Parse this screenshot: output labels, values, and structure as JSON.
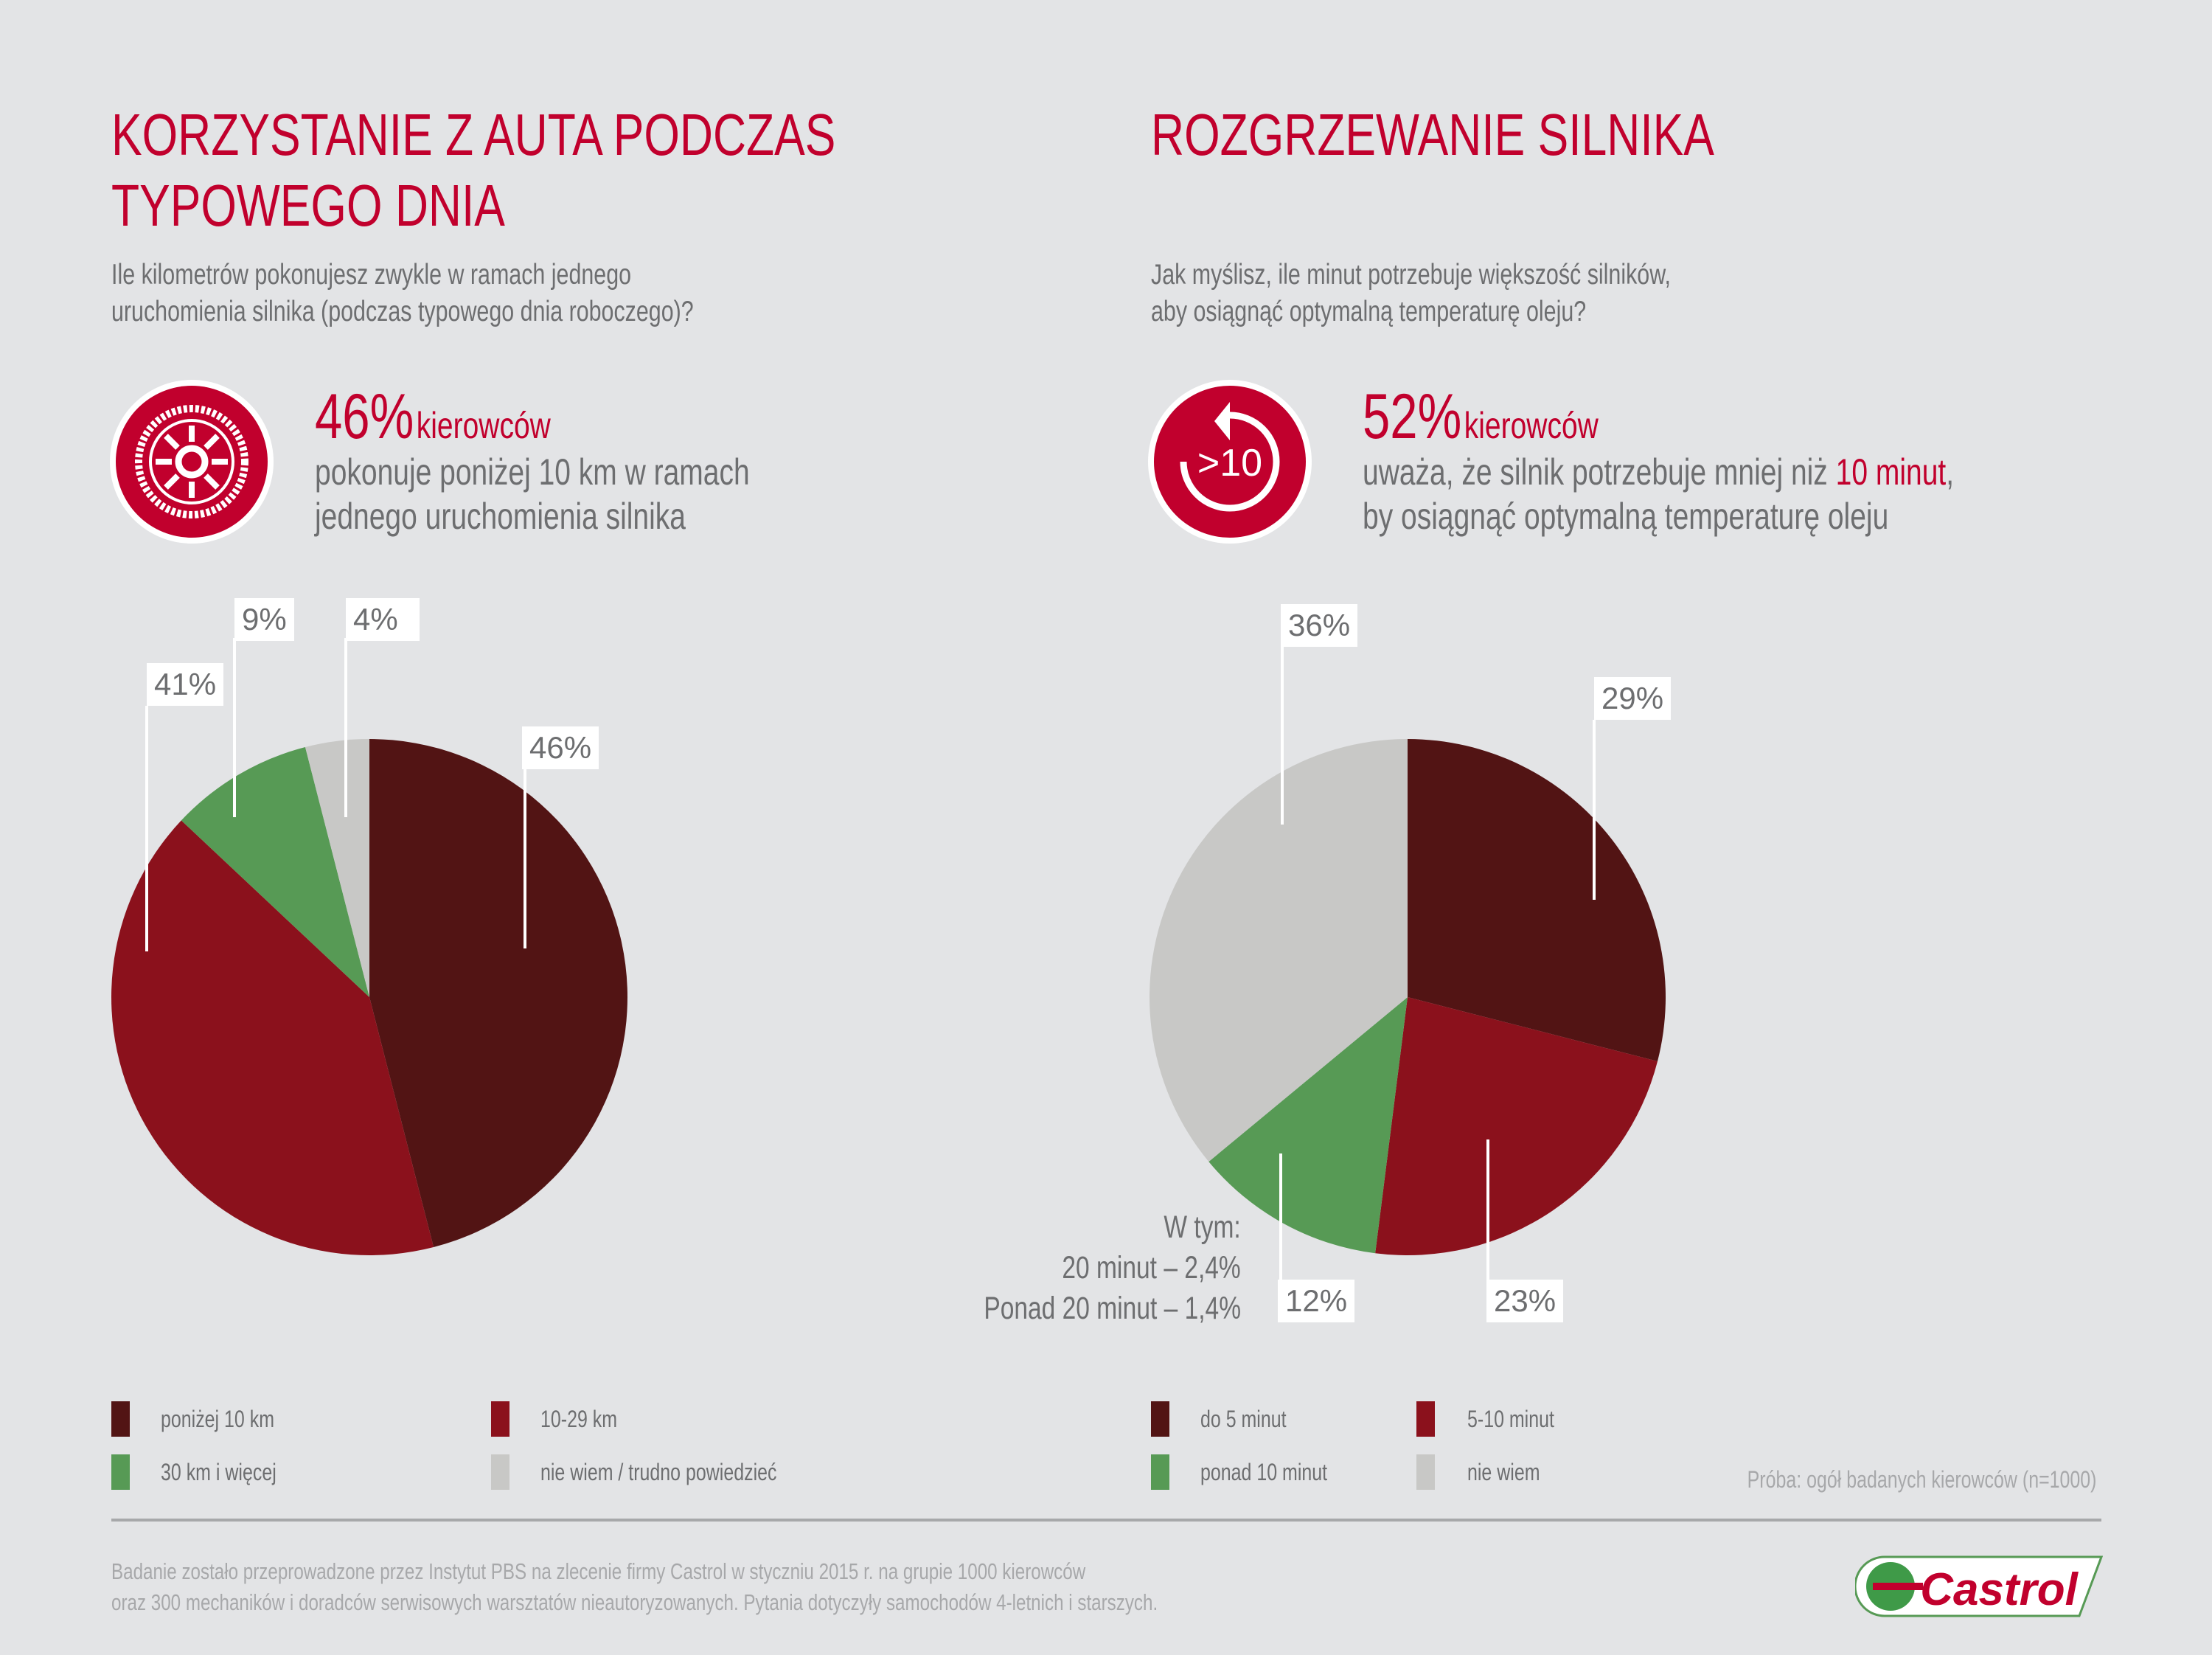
{
  "colors": {
    "accent": "#c1002d",
    "dark": "#521414",
    "red": "#8b111c",
    "green": "#579a55",
    "gray": "#c8c8c6"
  },
  "left": {
    "title_line1": "KORZYSTANIE Z AUTA PODCZAS",
    "title_line2": "TYPOWEGO DNIA",
    "question_line1": "Ile kilometrów pokonujesz zwykle w ramach jednego",
    "question_line2": "uruchomienia silnika (podczas typowego dnia roboczego)?",
    "icon": "wheel-icon",
    "stat_value": "46%",
    "stat_unit": "kierowców",
    "stat_line1": "pokonuje poniżej 10 km w ramach",
    "stat_line2": "jednego uruchomienia silnika"
  },
  "right": {
    "title": "ROZGRZEWANIE SILNIKA",
    "question_line1": "Jak myślisz, ile minut potrzebuje większość silników,",
    "question_line2": "aby osiągnąć optymalną temperaturę oleju?",
    "icon": "timer-icon",
    "icon_text": ">10",
    "stat_value": "52%",
    "stat_unit": "kierowców",
    "stat_line1a": "uważa, że silnik potrzebuje mniej niż ",
    "stat_line1b": "10 minut",
    "stat_line1c": ",",
    "stat_line2": "by osiągnąć optymalną temperaturę oleju",
    "note_line1": "W tym:",
    "note_line2": "20 minut – 2,4%",
    "note_line3": "Ponad 20 minut – 1,4%"
  },
  "chart_data": [
    {
      "type": "pie",
      "categories": [
        "poniżej 10 km",
        "10-29 km",
        "30 km i więcej",
        "nie wiem / trudno powiedzieć"
      ],
      "values": [
        46,
        41,
        9,
        4
      ],
      "labels": [
        "46%",
        "41%",
        "9%",
        "4%"
      ],
      "colors": [
        "#521414",
        "#8b111c",
        "#579a55",
        "#c8c8c6"
      ]
    },
    {
      "type": "pie",
      "categories": [
        "do 5 minut",
        "5-10 minut",
        "ponad 10 minut",
        "nie wiem"
      ],
      "values": [
        29,
        23,
        12,
        36
      ],
      "labels": [
        "29%",
        "23%",
        "12%",
        "36%"
      ],
      "colors": [
        "#521414",
        "#8b111c",
        "#579a55",
        "#c8c8c6"
      ]
    }
  ],
  "sample": "Próba: ogół badanych kierowców (n=1000)",
  "footer_line1": "Badanie zostało przeprowadzone przez Instytut PBS na zlecenie firmy Castrol w styczniu 2015 r. na grupie 1000 kierowców",
  "footer_line2": "oraz 300 mechaników i doradców serwisowych warsztatów nieautoryzowanych. Pytania dotyczyły samochodów 4-letnich i starszych.",
  "logo": "Castrol"
}
